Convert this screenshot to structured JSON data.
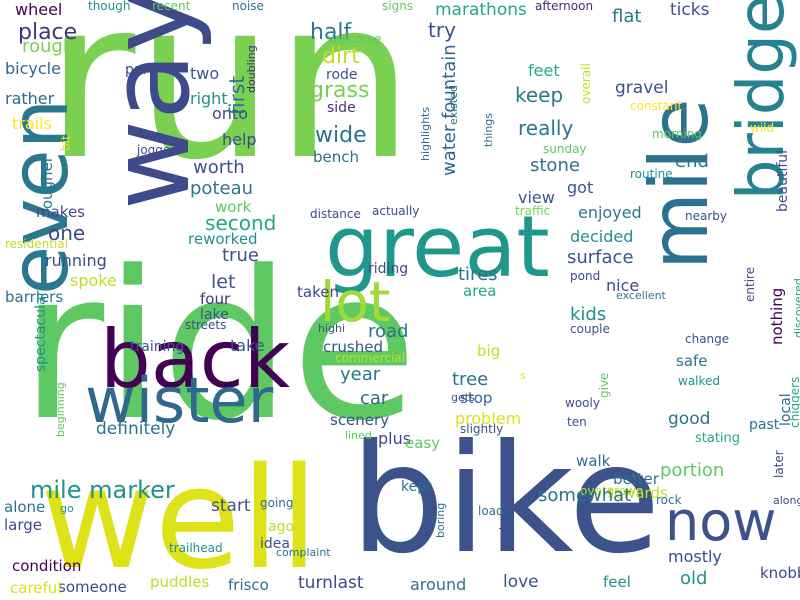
{
  "words": [
    {
      "text": "run",
      "color": "#7ad151"
    },
    {
      "text": "ride",
      "color": "#5ec962"
    },
    {
      "text": "bike",
      "color": "#3b528b"
    },
    {
      "text": "well",
      "color": "#dde318"
    },
    {
      "text": "way",
      "color": "#3e4a89"
    },
    {
      "text": "great",
      "color": "#1f988b"
    },
    {
      "text": "mile",
      "color": "#2c728e"
    },
    {
      "text": "bridge",
      "color": "#26828e"
    },
    {
      "text": "even",
      "color": "#2a788e"
    },
    {
      "text": "back",
      "color": "#440154"
    },
    {
      "text": "wister",
      "color": "#31688e"
    },
    {
      "text": "lot",
      "color": "#a0da39"
    },
    {
      "text": "now",
      "color": "#3b528b"
    },
    {
      "text": "mile marker",
      "color": "#21918c"
    },
    {
      "text": "wheel",
      "color": "#440154"
    },
    {
      "text": "though",
      "color": "#21918c"
    },
    {
      "text": "recent",
      "color": "#5ec962"
    },
    {
      "text": "noise",
      "color": "#2c728e"
    },
    {
      "text": "signs",
      "color": "#5ec962"
    },
    {
      "text": "afternoon",
      "color": "#482878"
    },
    {
      "text": "marathons",
      "color": "#22a884"
    },
    {
      "text": "ticks",
      "color": "#3b528b"
    },
    {
      "text": "flat",
      "color": "#2a788e"
    },
    {
      "text": "half",
      "color": "#2a788e"
    },
    {
      "text": "try",
      "color": "#3b528b"
    },
    {
      "text": "place",
      "color": "#46327e"
    },
    {
      "text": "rough",
      "color": "#7ad151"
    },
    {
      "text": "dirt",
      "color": "#c2df23"
    },
    {
      "text": "welcome",
      "color": "#5ec962"
    },
    {
      "text": "doubling",
      "color": "#482878"
    },
    {
      "text": "bicycle",
      "color": "#31688e"
    },
    {
      "text": "part",
      "color": "#3e4a89"
    },
    {
      "text": "two",
      "color": "#3b528b"
    },
    {
      "text": "rode",
      "color": "#3b528b"
    },
    {
      "text": "grass",
      "color": "#75d054"
    },
    {
      "text": "feet",
      "color": "#22a884"
    },
    {
      "text": "overall",
      "color": "#c2df23"
    },
    {
      "text": "gravel",
      "color": "#3b528b"
    },
    {
      "text": "constant",
      "color": "#fde725"
    },
    {
      "text": "rather",
      "color": "#31688e"
    },
    {
      "text": "right",
      "color": "#21918c"
    },
    {
      "text": "side",
      "color": "#46327e"
    },
    {
      "text": "keep",
      "color": "#2a788e"
    },
    {
      "text": "highlights",
      "color": "#2c728e"
    },
    {
      "text": "existed",
      "color": "#2a788e"
    },
    {
      "text": "trails",
      "color": "#fde725"
    },
    {
      "text": "onto",
      "color": "#3e4a89"
    },
    {
      "text": "wide",
      "color": "#2c728e"
    },
    {
      "text": "water fountain",
      "color": "#31688e"
    },
    {
      "text": "really",
      "color": "#2a788e"
    },
    {
      "text": "wild",
      "color": "#fde725"
    },
    {
      "text": "morning",
      "color": "#5ec962"
    },
    {
      "text": "bit",
      "color": "#dde318"
    },
    {
      "text": "jogged",
      "color": "#3e4a89"
    },
    {
      "text": "help",
      "color": "#3e4a89"
    },
    {
      "text": "bench",
      "color": "#2c728e"
    },
    {
      "text": "sunday",
      "color": "#5ec962"
    },
    {
      "text": "things",
      "color": "#2c728e"
    },
    {
      "text": "stone",
      "color": "#2c728e"
    },
    {
      "text": "end",
      "color": "#2c728e"
    },
    {
      "text": "routine",
      "color": "#21918c"
    },
    {
      "text": "first",
      "color": "#2c728e"
    },
    {
      "text": "rougher",
      "color": "#2a788e"
    },
    {
      "text": "worth",
      "color": "#3b528b"
    },
    {
      "text": "got",
      "color": "#3b528b"
    },
    {
      "text": "beautiful",
      "color": "#3b528b"
    },
    {
      "text": "poteau",
      "color": "#2a788e"
    },
    {
      "text": "view",
      "color": "#3b528b"
    },
    {
      "text": "traffic",
      "color": "#7ad151"
    },
    {
      "text": "nearby",
      "color": "#3b528b"
    },
    {
      "text": "work",
      "color": "#5ec962"
    },
    {
      "text": "enjoyed",
      "color": "#2a788e"
    },
    {
      "text": "makes",
      "color": "#3e4a89"
    },
    {
      "text": "distance",
      "color": "#3e4a89"
    },
    {
      "text": "actually",
      "color": "#3e4a89"
    },
    {
      "text": "second",
      "color": "#22a884"
    },
    {
      "text": "residential",
      "color": "#bddf26"
    },
    {
      "text": "reworked",
      "color": "#21918c"
    },
    {
      "text": "one",
      "color": "#3e4a89"
    },
    {
      "text": "decided",
      "color": "#21918c"
    },
    {
      "text": "true",
      "color": "#3b528b"
    },
    {
      "text": "running",
      "color": "#3e4a89"
    },
    {
      "text": "surface",
      "color": "#3b528b"
    },
    {
      "text": "let",
      "color": "#3b528b"
    },
    {
      "text": "spoke",
      "color": "#bddf26"
    },
    {
      "text": "riding",
      "color": "#3e4a89"
    },
    {
      "text": "tires",
      "color": "#2c728e"
    },
    {
      "text": "pond",
      "color": "#3e4a89"
    },
    {
      "text": "entire",
      "color": "#3e4a89"
    },
    {
      "text": "barriers",
      "color": "#2c728e"
    },
    {
      "text": "four",
      "color": "#46327e"
    },
    {
      "text": "taken",
      "color": "#3e4a89"
    },
    {
      "text": "area",
      "color": "#22a884"
    },
    {
      "text": "nice",
      "color": "#3e4a89"
    },
    {
      "text": "excellent",
      "color": "#2a788e"
    },
    {
      "text": "nothing",
      "color": "#440154"
    },
    {
      "text": "discovered",
      "color": "#22a884"
    },
    {
      "text": "lake",
      "color": "#3b528b"
    },
    {
      "text": "streets",
      "color": "#3e4a89"
    },
    {
      "text": "road",
      "color": "#2c728e"
    },
    {
      "text": "kids",
      "color": "#21918c"
    },
    {
      "text": "highi",
      "color": "#3b528b"
    },
    {
      "text": "couple",
      "color": "#3b528b"
    },
    {
      "text": "spectacular",
      "color": "#21918c"
    },
    {
      "text": "training",
      "color": "#3b528b"
    },
    {
      "text": "take",
      "color": "#3b528b"
    },
    {
      "text": "crushed",
      "color": "#3b528b"
    },
    {
      "text": "change",
      "color": "#3b528b"
    },
    {
      "text": "commercial",
      "color": "#c2df23"
    },
    {
      "text": "big",
      "color": "#c2df23"
    },
    {
      "text": "year",
      "color": "#2a788e"
    },
    {
      "text": "tree",
      "color": "#2c728e"
    },
    {
      "text": "safe",
      "color": "#2c728e"
    },
    {
      "text": "s",
      "color": "#dde318"
    },
    {
      "text": "chiggers",
      "color": "#22a884"
    },
    {
      "text": "beginning",
      "color": "#5ec962"
    },
    {
      "text": "car",
      "color": "#31688e"
    },
    {
      "text": "stop",
      "color": "#31688e"
    },
    {
      "text": "give",
      "color": "#5ec962"
    },
    {
      "text": "scenery",
      "color": "#3b528b"
    },
    {
      "text": "gets",
      "color": "#3b528b"
    },
    {
      "text": "walked",
      "color": "#21918c"
    },
    {
      "text": "local",
      "color": "#31688e"
    },
    {
      "text": "problem",
      "color": "#dde318"
    },
    {
      "text": "wooly",
      "color": "#3e4a89"
    },
    {
      "text": "past",
      "color": "#2c728e"
    },
    {
      "text": "lined",
      "color": "#5ec962"
    },
    {
      "text": "plus",
      "color": "#3e4a89"
    },
    {
      "text": "slightly",
      "color": "#3b528b"
    },
    {
      "text": "good",
      "color": "#2c728e"
    },
    {
      "text": "ten",
      "color": "#3b528b"
    },
    {
      "text": "stating",
      "color": "#22a884"
    },
    {
      "text": "definitely",
      "color": "#2c728e"
    },
    {
      "text": "easy",
      "color": "#5ec962"
    },
    {
      "text": "walk",
      "color": "#2c728e"
    },
    {
      "text": "later",
      "color": "#3e4a89"
    },
    {
      "text": "kept",
      "color": "#2c728e"
    },
    {
      "text": "better",
      "color": "#2c728e"
    },
    {
      "text": "overgrown",
      "color": "#bddf26"
    },
    {
      "text": "portion",
      "color": "#5ec962"
    },
    {
      "text": "go",
      "color": "#21918c"
    },
    {
      "text": "start",
      "color": "#3b528b"
    },
    {
      "text": "towards",
      "color": "#c2df23"
    },
    {
      "text": "rock",
      "color": "#2a788e"
    },
    {
      "text": "somewhat",
      "color": "#2c728e"
    },
    {
      "text": "along",
      "color": "#3e4a89"
    },
    {
      "text": "going",
      "color": "#2c728e"
    },
    {
      "text": "alone",
      "color": "#2c728e"
    },
    {
      "text": "large",
      "color": "#3e4a89"
    },
    {
      "text": "load",
      "color": "#2c728e"
    },
    {
      "text": "boring",
      "color": "#2c728e"
    },
    {
      "text": "ago",
      "color": "#bddf26"
    },
    {
      "text": "done",
      "color": "#3b528b"
    },
    {
      "text": "idea",
      "color": "#3b528b"
    },
    {
      "text": "complaint",
      "color": "#2c728e"
    },
    {
      "text": "trailhead",
      "color": "#21918c"
    },
    {
      "text": "mostly",
      "color": "#3e4a89"
    },
    {
      "text": "condition",
      "color": "#440154"
    },
    {
      "text": "someone",
      "color": "#3e4a89"
    },
    {
      "text": "puddles",
      "color": "#bddf26"
    },
    {
      "text": "frisco",
      "color": "#2c728e"
    },
    {
      "text": "turnlast",
      "color": "#3e4a89"
    },
    {
      "text": "around",
      "color": "#2c728e"
    },
    {
      "text": "love",
      "color": "#3b528b"
    },
    {
      "text": "old",
      "color": "#21918c"
    },
    {
      "text": "knobby",
      "color": "#3e4a89"
    },
    {
      "text": "feel",
      "color": "#21918c"
    },
    {
      "text": "careful",
      "color": "#dde318"
    }
  ]
}
